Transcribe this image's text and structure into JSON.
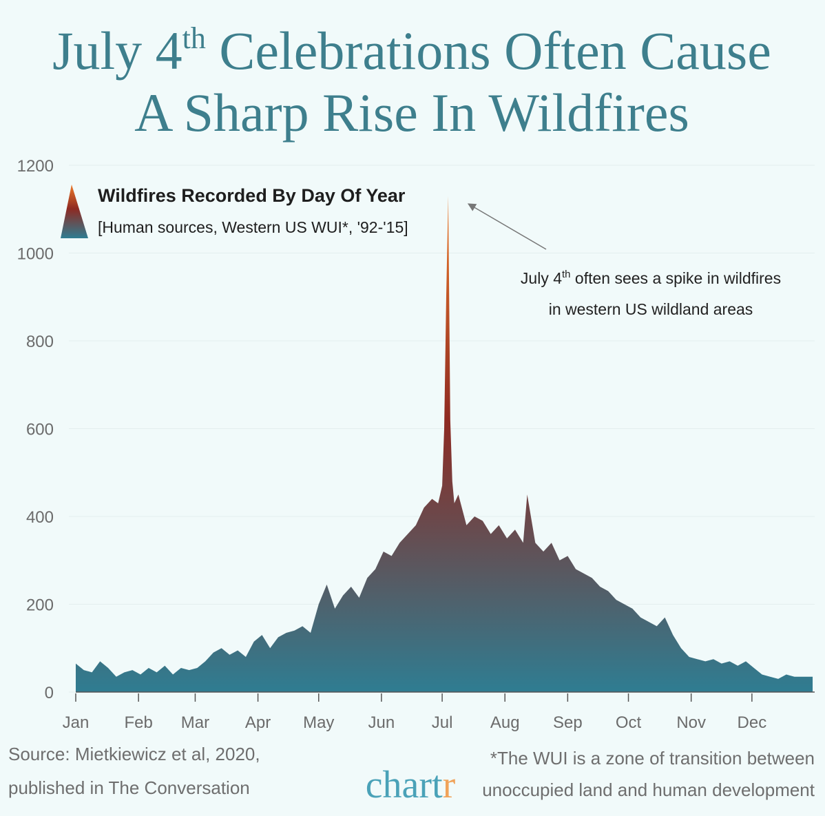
{
  "chart_data": {
    "type": "area",
    "title": {
      "line1_start": "July 4",
      "line1_sup": "th",
      "line1_end": " Celebrations Often Cause",
      "line2": "A Sharp Rise In Wildfires"
    },
    "legend": {
      "title": "Wildfires Recorded By Day Of Year",
      "subtitle": "[Human sources, Western US WUI*, '92-'15]"
    },
    "annotation": {
      "line1_start": "July 4",
      "line1_sup": "th",
      "line1_end": " often sees a spike in wildfires",
      "line2": "in western US wildland areas"
    },
    "source": [
      "Source: Mietkiewicz et al, 2020,",
      "published in  The Conversation"
    ],
    "footnote": [
      "*The WUI is a zone of transition between",
      "unoccupied land and human development"
    ],
    "brand": {
      "main": "chart",
      "accent": "r"
    },
    "x": [
      1,
      5,
      9,
      13,
      17,
      21,
      25,
      29,
      33,
      37,
      41,
      45,
      49,
      53,
      57,
      61,
      65,
      69,
      73,
      77,
      81,
      85,
      89,
      93,
      97,
      101,
      105,
      109,
      113,
      117,
      121,
      125,
      129,
      133,
      137,
      141,
      145,
      149,
      153,
      157,
      161,
      165,
      169,
      173,
      177,
      180,
      182,
      183,
      184,
      185,
      186,
      187,
      188,
      190,
      194,
      198,
      202,
      206,
      210,
      214,
      218,
      222,
      224,
      228,
      232,
      236,
      240,
      244,
      248,
      252,
      256,
      260,
      264,
      268,
      272,
      276,
      280,
      284,
      288,
      292,
      296,
      300,
      304,
      308,
      312,
      316,
      320,
      324,
      328,
      332,
      336,
      340,
      344,
      348,
      352,
      356,
      360,
      365
    ],
    "values": [
      65,
      50,
      45,
      70,
      55,
      35,
      45,
      50,
      40,
      55,
      45,
      60,
      40,
      55,
      50,
      55,
      70,
      90,
      100,
      85,
      95,
      80,
      115,
      130,
      100,
      125,
      135,
      140,
      150,
      135,
      200,
      245,
      190,
      220,
      240,
      215,
      260,
      280,
      320,
      310,
      340,
      360,
      380,
      420,
      440,
      430,
      470,
      600,
      900,
      1130,
      620,
      480,
      430,
      450,
      380,
      400,
      390,
      360,
      380,
      350,
      370,
      340,
      450,
      340,
      320,
      340,
      300,
      310,
      280,
      270,
      260,
      240,
      230,
      210,
      200,
      190,
      170,
      160,
      150,
      170,
      130,
      100,
      80,
      75,
      70,
      75,
      65,
      70,
      60,
      70,
      55,
      40,
      35,
      30,
      40,
      35,
      35,
      35
    ],
    "gradient": [
      "#2f7d92",
      "#8e2a22",
      "#ee7a2a"
    ],
    "xlim": [
      1,
      366
    ],
    "xticks": [
      {
        "value": 1,
        "label": "Jan"
      },
      {
        "value": 32,
        "label": "Feb"
      },
      {
        "value": 60,
        "label": "Mar"
      },
      {
        "value": 91,
        "label": "Apr"
      },
      {
        "value": 121,
        "label": "May"
      },
      {
        "value": 152,
        "label": "Jun"
      },
      {
        "value": 182,
        "label": "Jul"
      },
      {
        "value": 213,
        "label": "Aug"
      },
      {
        "value": 244,
        "label": "Sep"
      },
      {
        "value": 274,
        "label": "Oct"
      },
      {
        "value": 305,
        "label": "Nov"
      },
      {
        "value": 335,
        "label": "Dec"
      }
    ],
    "ylim": [
      0,
      1200
    ],
    "yticks": [
      0,
      200,
      400,
      600,
      800,
      1000,
      1200
    ],
    "grid": true
  }
}
